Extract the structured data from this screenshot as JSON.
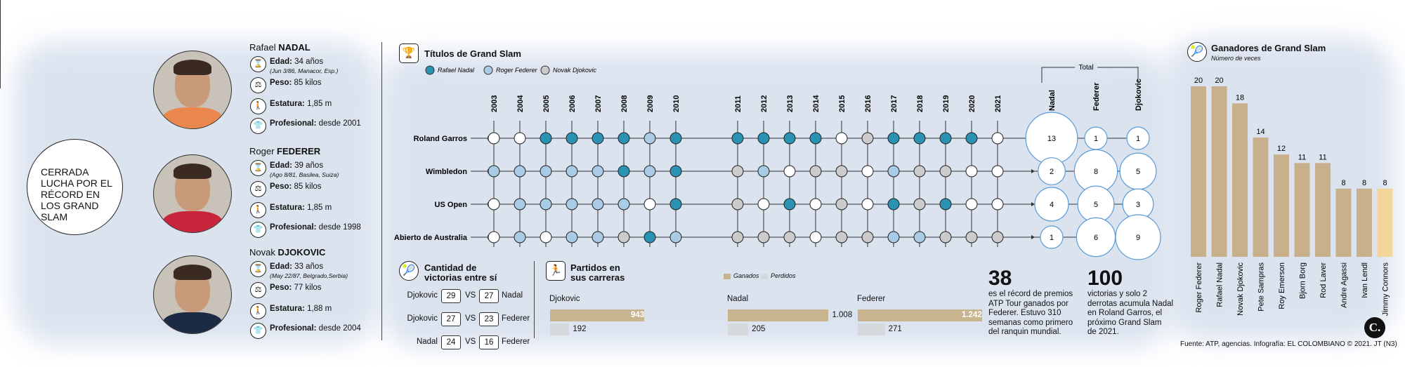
{
  "headline": "CERRADA LUCHA POR EL RÉCORD EN LOS GRAND SLAM",
  "players": [
    {
      "first": "Rafael",
      "last": "NADAL",
      "age_label": "Edad:",
      "age": "34 años",
      "birth": "(Jun 3/86, Manacor, Esp.)",
      "weight_label": "Peso:",
      "weight": "85 kilos",
      "height_label": "Estatura:",
      "height": "1,85 m",
      "pro_label": "Profesional:",
      "pro": "desde 2001",
      "shirt_color": "#e9874e"
    },
    {
      "first": "Roger",
      "last": "FEDERER",
      "age_label": "Edad:",
      "age": "39 años",
      "birth": "(Ago 8/81, Basilea, Suiza)",
      "weight_label": "Peso:",
      "weight": "85 kilos",
      "height_label": "Estatura:",
      "height": "1,85 m",
      "pro_label": "Profesional:",
      "pro": "desde 1998",
      "shirt_color": "#c8253c"
    },
    {
      "first": "Novak",
      "last": "DJOKOVIC",
      "age_label": "Edad:",
      "age": "33 años",
      "birth": "(May 22/87, Belgrado,Serbia)",
      "weight_label": "Peso:",
      "weight": "77 kilos",
      "height_label": "Estatura:",
      "height": "1,88 m",
      "pro_label": "Profesional:",
      "pro": "desde 2004",
      "shirt_color": "#1c2a44"
    }
  ],
  "titles": {
    "title": "Títulos de Grand Slam",
    "legend": [
      "Rafael Nadal",
      "Roger Federer",
      "Novak Djokovic"
    ],
    "total_label": "Total",
    "colors": {
      "nadal": "#2a93b4",
      "federer": "#a9cbe6",
      "djokovic": "#cbcbcb",
      "none": "#ffffff"
    }
  },
  "h2h": {
    "title_line1": "Cantidad de",
    "title_line2": "victorias entre sí",
    "vs": "VS",
    "rows": [
      {
        "left": "Djokovic",
        "a": "29",
        "b": "27",
        "right": "Nadal"
      },
      {
        "left": "Djokovic",
        "a": "27",
        "b": "23",
        "right": "Federer"
      },
      {
        "left": "Nadal",
        "a": "24",
        "b": "16",
        "right": "Federer"
      }
    ]
  },
  "matches": {
    "title_line1": "Partidos en",
    "title_line2": "sus carreras",
    "legend_won": "Ganados",
    "legend_lost": "Perdidos",
    "colors": {
      "won": "#c8b58f",
      "lost": "#d5d9dc"
    }
  },
  "stats": [
    {
      "number": "38",
      "line1": "es el récord de premios",
      "line2": "ATP Tour ganados por",
      "line3": "Federer. Estuvo 310",
      "line4": "semanas como primero",
      "line5": "del ranquin mundial."
    },
    {
      "number": "100",
      "line1": "victorias y solo 2",
      "line2": "derrotas acumula Nadal",
      "line3": "en Roland Garros, el",
      "line4": "próximo Grand Slam",
      "line5": "de 2021."
    }
  ],
  "winners": {
    "title": "Ganadores de Grand Slam",
    "subtitle": "Número de veces",
    "colors": {
      "bar": "#c8b08d",
      "highlight": "#f3d499"
    }
  },
  "source": "Fuente: ATP, agencias. Infografía: EL COLOMBIANO © 2021. JT (N3)",
  "logo": "C.",
  "chart_data": [
    {
      "type": "table",
      "title": "Títulos de Grand Slam",
      "years": [
        "2003",
        "2004",
        "2005",
        "2006",
        "2007",
        "2008",
        "2009",
        "2010",
        "2011",
        "2012",
        "2013",
        "2014",
        "2015",
        "2016",
        "2017",
        "2018",
        "2019",
        "2020",
        "2021"
      ],
      "rows": [
        {
          "name": "Roland Garros",
          "winners": [
            "O",
            "O",
            "N",
            "N",
            "N",
            "N",
            "F",
            "N",
            "N",
            "N",
            "N",
            "N",
            "O",
            "D",
            "N",
            "N",
            "N",
            "N",
            "O"
          ],
          "totals": {
            "Nadal": 13,
            "Federer": 1,
            "Djokovic": 1
          }
        },
        {
          "name": "Wimbledon",
          "winners": [
            "F",
            "F",
            "F",
            "F",
            "F",
            "N",
            "F",
            "N",
            "D",
            "F",
            "O",
            "D",
            "D",
            "O",
            "F",
            "D",
            "D",
            "O",
            "O"
          ],
          "totals": {
            "Nadal": 2,
            "Federer": 8,
            "Djokovic": 5
          }
        },
        {
          "name": "US Open",
          "winners": [
            "O",
            "F",
            "F",
            "F",
            "F",
            "F",
            "O",
            "N",
            "D",
            "O",
            "N",
            "O",
            "D",
            "O",
            "N",
            "D",
            "N",
            "O",
            "O"
          ],
          "totals": {
            "Nadal": 4,
            "Federer": 5,
            "Djokovic": 3
          }
        },
        {
          "name": "Abierto de Australia",
          "winners": [
            "O",
            "F",
            "O",
            "F",
            "F",
            "D",
            "N",
            "F",
            "D",
            "D",
            "D",
            "O",
            "D",
            "D",
            "F",
            "F",
            "D",
            "D",
            "D"
          ],
          "totals": {
            "Nadal": 1,
            "Federer": 6,
            "Djokovic": 9
          }
        }
      ],
      "legend": {
        "N": "Rafael Nadal",
        "F": "Roger Federer",
        "D": "Novak Djokovic",
        "O": "Otro"
      },
      "totals_columns": [
        "Nadal",
        "Federer",
        "Djokovic"
      ]
    },
    {
      "type": "bar",
      "title": "Partidos en sus carreras",
      "categories": [
        "Djokovic",
        "Nadal",
        "Federer"
      ],
      "series": [
        {
          "name": "Ganados",
          "values": [
            943,
            1008,
            1242
          ],
          "labels": [
            "943",
            "1.008",
            "1.242"
          ]
        },
        {
          "name": "Perdidos",
          "values": [
            192,
            205,
            271
          ],
          "labels": [
            "192",
            "205",
            "271"
          ]
        }
      ]
    },
    {
      "type": "bar",
      "title": "Ganadores de Grand Slam",
      "subtitle": "Número de veces",
      "categories": [
        "Roger Federer",
        "Rafael Nadal",
        "Novak Djokovic",
        "Pete Sampras",
        "Roy Emerson",
        "Bjorn Borg",
        "Rod Laver",
        "Andre Agassi",
        "Ivan Lendl",
        "Jimmy Connors"
      ],
      "values": [
        20,
        20,
        18,
        14,
        12,
        11,
        11,
        8,
        8,
        8
      ],
      "ylim": [
        0,
        20
      ]
    }
  ]
}
